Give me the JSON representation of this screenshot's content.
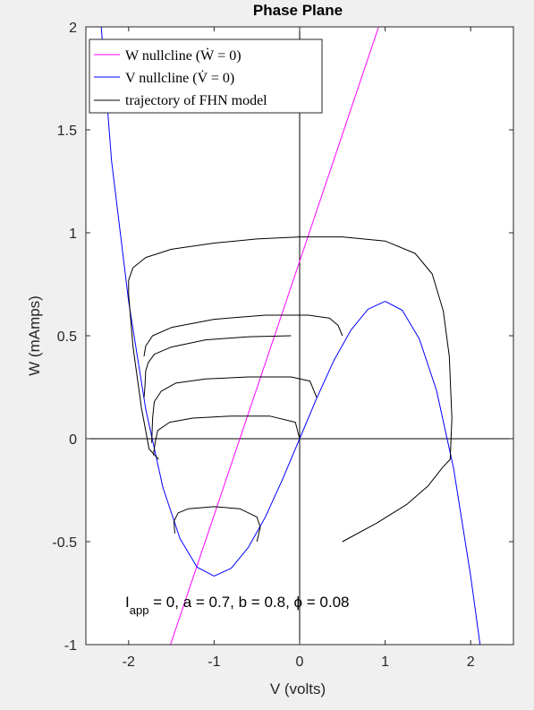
{
  "chart_data": {
    "type": "line",
    "title": "Phase Plane",
    "xlabel": "V (volts)",
    "ylabel": "W (mAmps)",
    "xlim": [
      -2.5,
      2.5
    ],
    "ylim": [
      -1,
      2
    ],
    "xticks": [
      -2,
      -1,
      0,
      1,
      2
    ],
    "xtick_labels": [
      "-2",
      "-1",
      "0",
      "1",
      "2"
    ],
    "yticks": [
      -1,
      -0.5,
      0,
      0.5,
      1,
      1.5,
      2
    ],
    "ytick_labels": [
      "-1",
      "-0.5",
      "0",
      "0.5",
      "1",
      "1.5",
      "2"
    ],
    "grid": false,
    "legend_position": "top-left",
    "legend": [
      {
        "label": "W nullcline (Ẇ = 0)",
        "color": "#ff00ff"
      },
      {
        "label": "V nullcline (V̇ = 0)",
        "color": "#0000ff"
      },
      {
        "label": "trajectory of FHN model",
        "color": "#000000"
      }
    ],
    "annotation": "I_app = 0, a = 0.7, b = 0.8, ϕ = 0.08",
    "reference_lines": {
      "x": 0,
      "y": 0
    },
    "w_nullcline": {
      "color": "#ff00ff",
      "points": [
        [
          -1.51,
          -1.0
        ],
        [
          0.924,
          2.0
        ]
      ]
    },
    "v_nullcline": {
      "color": "#0000ff",
      "points": [
        [
          -2.32,
          2.0
        ],
        [
          -2.2,
          1.35
        ],
        [
          -2.0,
          0.667
        ],
        [
          -1.8,
          0.144
        ],
        [
          -1.6,
          -0.235
        ],
        [
          -1.4,
          -0.485
        ],
        [
          -1.2,
          -0.624
        ],
        [
          -1.0,
          -0.667
        ],
        [
          -0.8,
          -0.629
        ],
        [
          -0.6,
          -0.528
        ],
        [
          -0.4,
          -0.379
        ],
        [
          -0.2,
          -0.197
        ],
        [
          0.0,
          0.0
        ],
        [
          0.2,
          0.197
        ],
        [
          0.4,
          0.379
        ],
        [
          0.6,
          0.528
        ],
        [
          0.8,
          0.629
        ],
        [
          1.0,
          0.667
        ],
        [
          1.2,
          0.624
        ],
        [
          1.4,
          0.485
        ],
        [
          1.6,
          0.235
        ],
        [
          1.8,
          -0.144
        ],
        [
          2.0,
          -0.667
        ],
        [
          2.11,
          -1.0
        ]
      ]
    },
    "trajectories": [
      {
        "color": "#000000",
        "points": [
          [
            0.5,
            -0.5
          ],
          [
            0.9,
            -0.41
          ],
          [
            1.25,
            -0.32
          ],
          [
            1.5,
            -0.23
          ],
          [
            1.67,
            -0.14
          ],
          [
            1.76,
            -0.1
          ],
          [
            1.78,
            0.1
          ],
          [
            1.75,
            0.4
          ],
          [
            1.68,
            0.62
          ],
          [
            1.55,
            0.8
          ],
          [
            1.35,
            0.9
          ],
          [
            1.0,
            0.96
          ],
          [
            0.5,
            0.98
          ],
          [
            0.0,
            0.98
          ],
          [
            -0.5,
            0.97
          ],
          [
            -1.0,
            0.95
          ],
          [
            -1.5,
            0.92
          ],
          [
            -1.8,
            0.88
          ],
          [
            -1.95,
            0.83
          ],
          [
            -2.0,
            0.77
          ],
          [
            -2.0,
            0.7
          ],
          [
            -1.95,
            0.45
          ],
          [
            -1.85,
            0.15
          ],
          [
            -1.76,
            -0.05
          ],
          [
            -1.65,
            -0.1
          ]
        ]
      },
      {
        "color": "#000000",
        "points": [
          [
            0.5,
            0.5
          ],
          [
            0.45,
            0.55
          ],
          [
            0.35,
            0.585
          ],
          [
            0.1,
            0.6
          ],
          [
            -0.4,
            0.6
          ],
          [
            -1.0,
            0.58
          ],
          [
            -1.5,
            0.54
          ],
          [
            -1.72,
            0.5
          ],
          [
            -1.8,
            0.45
          ],
          [
            -1.82,
            0.4
          ]
        ]
      },
      {
        "color": "#000000",
        "points": [
          [
            -0.1,
            0.5
          ],
          [
            -0.6,
            0.495
          ],
          [
            -1.1,
            0.48
          ],
          [
            -1.5,
            0.445
          ],
          [
            -1.7,
            0.41
          ],
          [
            -1.77,
            0.37
          ],
          [
            -1.8,
            0.33
          ],
          [
            -1.81,
            0.25
          ],
          [
            -1.82,
            0.2
          ]
        ]
      },
      {
        "color": "#000000",
        "points": [
          [
            0.2,
            0.2
          ],
          [
            0.12,
            0.28
          ],
          [
            -0.1,
            0.3
          ],
          [
            -0.6,
            0.3
          ],
          [
            -1.1,
            0.29
          ],
          [
            -1.45,
            0.27
          ],
          [
            -1.62,
            0.23
          ],
          [
            -1.7,
            0.18
          ],
          [
            -1.72,
            0.1
          ],
          [
            -1.73,
            -0.02
          ]
        ]
      },
      {
        "color": "#000000",
        "points": [
          [
            0.0,
            0.0
          ],
          [
            -0.05,
            0.08
          ],
          [
            -0.35,
            0.11
          ],
          [
            -0.8,
            0.11
          ],
          [
            -1.25,
            0.1
          ],
          [
            -1.52,
            0.08
          ],
          [
            -1.66,
            0.04
          ],
          [
            -1.69,
            -0.02
          ],
          [
            -1.71,
            -0.08
          ]
        ]
      },
      {
        "color": "#000000",
        "points": [
          [
            -0.5,
            -0.5
          ],
          [
            -0.46,
            -0.43
          ],
          [
            -0.5,
            -0.38
          ],
          [
            -0.7,
            -0.34
          ],
          [
            -1.0,
            -0.33
          ],
          [
            -1.3,
            -0.34
          ],
          [
            -1.42,
            -0.36
          ],
          [
            -1.47,
            -0.4
          ],
          [
            -1.46,
            -0.46
          ]
        ]
      }
    ]
  }
}
